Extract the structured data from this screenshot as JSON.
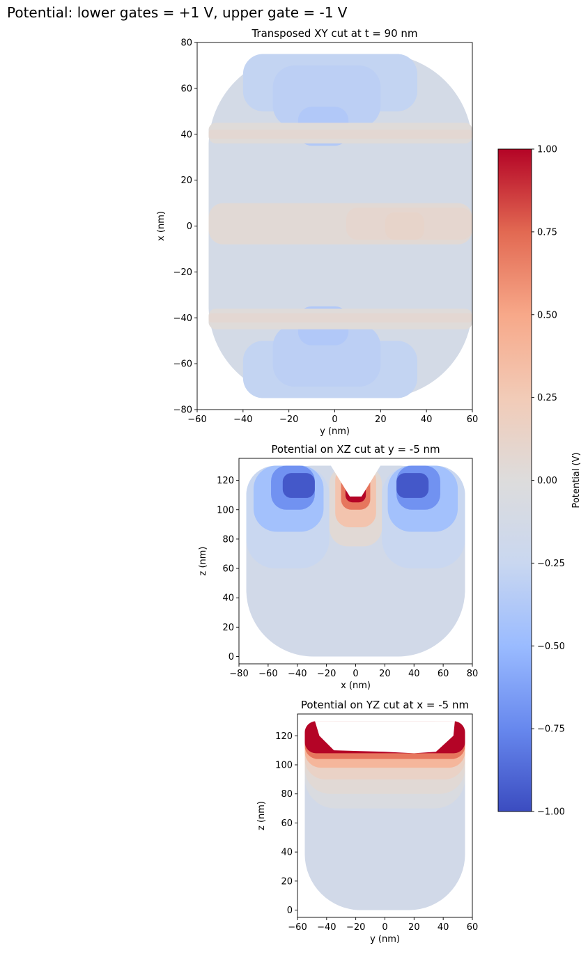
{
  "figure": {
    "suptitle": "Potential: lower gates = +1 V, upper gate = -1 V"
  },
  "chart_data": [
    {
      "type": "heatmap",
      "title": "Transposed XY cut at t = 90 nm",
      "xlabel": "y (nm)",
      "ylabel": "x (nm)",
      "xlim": [
        -60,
        60
      ],
      "ylim": [
        -80,
        80
      ],
      "xticks": [
        -60,
        -40,
        -20,
        0,
        20,
        40,
        60
      ],
      "yticks": [
        -80,
        -60,
        -40,
        -20,
        0,
        20,
        40,
        60,
        80
      ],
      "data_extent": {
        "x": [
          -55,
          60
        ],
        "y": [
          -75,
          75
        ]
      },
      "regions": [
        {
          "x": [
            -55,
            60
          ],
          "y": [
            -75,
            75
          ],
          "value": -0.12
        },
        {
          "x": [
            -40,
            36
          ],
          "y": [
            50,
            75
          ],
          "value": -0.28
        },
        {
          "x": [
            -27,
            20
          ],
          "y": [
            43,
            70
          ],
          "value": -0.32
        },
        {
          "x": [
            -16,
            6
          ],
          "y": [
            35,
            52
          ],
          "value": -0.38
        },
        {
          "x": [
            -40,
            36
          ],
          "y": [
            -75,
            -50
          ],
          "value": -0.28
        },
        {
          "x": [
            -27,
            20
          ],
          "y": [
            -70,
            -43
          ],
          "value": -0.32
        },
        {
          "x": [
            -16,
            6
          ],
          "y": [
            -52,
            -35
          ],
          "value": -0.38
        },
        {
          "x": [
            -55,
            60
          ],
          "y": [
            36,
            45
          ],
          "value": 0.02
        },
        {
          "x": [
            -55,
            60
          ],
          "y": [
            -45,
            -36
          ],
          "value": 0.02
        },
        {
          "x": [
            -55,
            60
          ],
          "y": [
            38,
            42
          ],
          "value": 0.07
        },
        {
          "x": [
            -55,
            60
          ],
          "y": [
            -42,
            -38
          ],
          "value": 0.07
        },
        {
          "x": [
            -55,
            60
          ],
          "y": [
            -8,
            10
          ],
          "value": 0.05
        },
        {
          "x": [
            5,
            60
          ],
          "y": [
            -6,
            8
          ],
          "value": 0.09
        },
        {
          "x": [
            22,
            39
          ],
          "y": [
            -6,
            6
          ],
          "value": 0.12
        }
      ]
    },
    {
      "type": "heatmap",
      "title": "Potential on XZ cut at y = -5 nm",
      "xlabel": "x (nm)",
      "ylabel": "z (nm)",
      "xlim": [
        -80,
        80
      ],
      "ylim": [
        -5,
        135
      ],
      "xticks": [
        -80,
        -60,
        -40,
        -20,
        0,
        20,
        40,
        60,
        80
      ],
      "yticks": [
        0,
        20,
        40,
        60,
        80,
        100,
        120
      ],
      "data_extent": {
        "x": [
          -75,
          75
        ],
        "z": [
          0,
          130
        ]
      },
      "regions": [
        {
          "x": [
            -75,
            75
          ],
          "y": [
            0,
            130
          ],
          "value": -0.15
        },
        {
          "x": [
            -75,
            -18
          ],
          "y": [
            60,
            130
          ],
          "value": -0.25
        },
        {
          "x": [
            18,
            75
          ],
          "y": [
            60,
            130
          ],
          "value": -0.25
        },
        {
          "x": [
            -70,
            -22
          ],
          "y": [
            85,
            130
          ],
          "value": -0.45
        },
        {
          "x": [
            22,
            70
          ],
          "y": [
            85,
            130
          ],
          "value": -0.45
        },
        {
          "x": [
            -58,
            -28
          ],
          "y": [
            100,
            130
          ],
          "value": -0.7
        },
        {
          "x": [
            28,
            58
          ],
          "y": [
            100,
            130
          ],
          "value": -0.7
        },
        {
          "x": [
            -50,
            -28
          ],
          "y": [
            108,
            125
          ],
          "value": -0.95
        },
        {
          "x": [
            28,
            50
          ],
          "y": [
            108,
            125
          ],
          "value": -0.95
        },
        {
          "x": [
            -18,
            18
          ],
          "y": [
            75,
            130
          ],
          "value": 0.05
        },
        {
          "x": [
            -14,
            14
          ],
          "y": [
            88,
            130
          ],
          "value": 0.3
        },
        {
          "x": [
            -10,
            10
          ],
          "y": [
            100,
            130
          ],
          "value": 0.7
        },
        {
          "x": [
            -7,
            7
          ],
          "y": [
            105,
            130
          ],
          "value": 1.0
        }
      ],
      "masked_region": {
        "x": [
          -17,
          -4,
          4,
          17
        ],
        "z": [
          130,
          109,
          109,
          130
        ]
      }
    },
    {
      "type": "heatmap",
      "title": "Potential on YZ cut at x = -5 nm",
      "xlabel": "y (nm)",
      "ylabel": "z (nm)",
      "xlim": [
        -60,
        60
      ],
      "ylim": [
        -5,
        135
      ],
      "xticks": [
        -60,
        -40,
        -20,
        0,
        20,
        40,
        60
      ],
      "yticks": [
        0,
        20,
        40,
        60,
        80,
        100,
        120
      ],
      "data_extent": {
        "x": [
          -55,
          55
        ],
        "z": [
          0,
          130
        ]
      },
      "regions": [
        {
          "x": [
            -55,
            55
          ],
          "y": [
            0,
            130
          ],
          "value": -0.15
        },
        {
          "x": [
            -55,
            55
          ],
          "y": [
            70,
            130
          ],
          "value": -0.05
        },
        {
          "x": [
            -55,
            55
          ],
          "y": [
            80,
            130
          ],
          "value": 0.05
        },
        {
          "x": [
            -55,
            55
          ],
          "y": [
            90,
            130
          ],
          "value": 0.15
        },
        {
          "x": [
            -55,
            55
          ],
          "y": [
            98,
            130
          ],
          "value": 0.4
        },
        {
          "x": [
            -55,
            55
          ],
          "y": [
            104,
            130
          ],
          "value": 0.7
        },
        {
          "x": [
            -55,
            55
          ],
          "y": [
            108,
            130
          ],
          "value": 1.0
        }
      ],
      "masked_region": {
        "x": [
          -48,
          -45,
          -35,
          0,
          20,
          35,
          47,
          48
        ],
        "z": [
          130,
          120,
          110,
          109,
          108,
          109,
          120,
          130
        ]
      }
    }
  ],
  "colorbar": {
    "label": "Potential (V)",
    "min": -1.0,
    "max": 1.0,
    "ticks": [
      "1.00",
      "0.75",
      "0.50",
      "0.25",
      "0.00",
      "−0.25",
      "−0.50",
      "−0.75",
      "−1.00"
    ],
    "colormap_stops": [
      "#3b4cc0",
      "#6788ee",
      "#9abbff",
      "#c9d7f0",
      "#dddcdc",
      "#f2cbb7",
      "#f7a889",
      "#e26952",
      "#b40426"
    ]
  }
}
